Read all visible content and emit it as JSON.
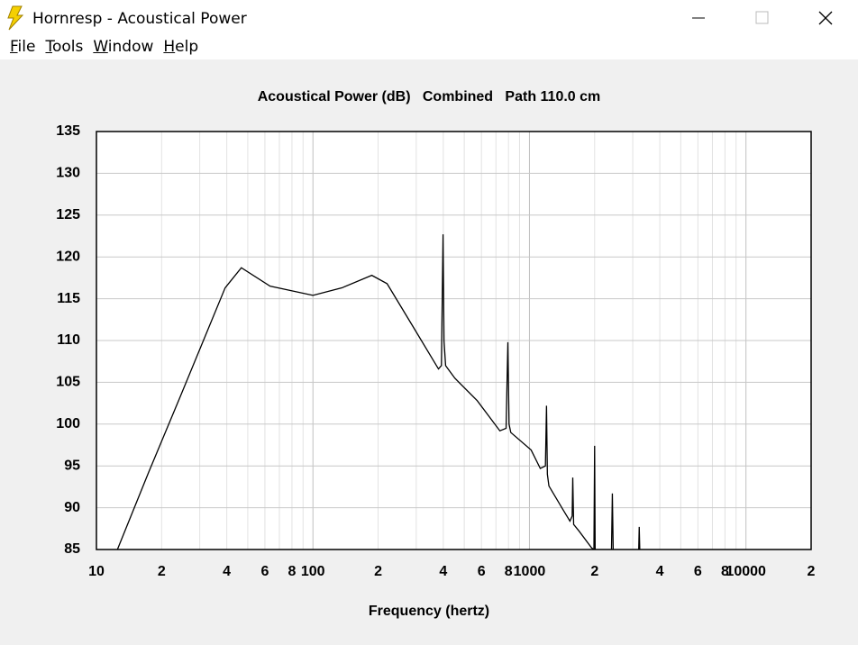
{
  "window": {
    "title": "Hornresp - Acoustical Power",
    "menu": [
      "File",
      "Tools",
      "Window",
      "Help"
    ]
  },
  "chart_data": {
    "type": "line",
    "title": "Acoustical Power (dB)   Combined   Path 110.0 cm",
    "x_label": "Frequency (hertz)",
    "x_scale": "log",
    "grid": true,
    "xlim": [
      10,
      20000
    ],
    "ylim": [
      85,
      135
    ],
    "xticks": [
      {
        "value": 10,
        "label": "10"
      },
      {
        "value": 20,
        "label": "2"
      },
      {
        "value": 40,
        "label": "4"
      },
      {
        "value": 60,
        "label": "6"
      },
      {
        "value": 80,
        "label": "8"
      },
      100,
      {
        "value": 200,
        "label": "2"
      },
      {
        "value": 400,
        "label": "4"
      },
      {
        "value": 600,
        "label": "6"
      },
      {
        "value": 800,
        "label": "8"
      },
      1000,
      {
        "value": 2000,
        "label": "2"
      },
      {
        "value": 4000,
        "label": "4"
      },
      {
        "value": 6000,
        "label": "6"
      },
      {
        "value": 8000,
        "label": "8"
      },
      10000,
      {
        "value": 20000,
        "label": "2"
      }
    ],
    "xgrid_minor": [
      30,
      50,
      70,
      90,
      300,
      500,
      700,
      900,
      3000,
      5000,
      7000,
      9000
    ],
    "yticks": [
      85,
      90,
      95,
      100,
      105,
      110,
      115,
      120,
      125,
      130,
      135
    ],
    "series": [
      {
        "name": "Combined",
        "color": "#000000",
        "x": [
          12.5,
          17.4,
          24.4,
          39.3,
          46.7,
          63.4,
          100,
          136,
          187,
          220,
          294,
          380,
          392,
          399,
          403,
          410,
          452,
          574,
          730,
          780,
          795,
          805,
          820,
          1018,
          1122,
          1185,
          1199,
          1210,
          1230,
          1426,
          1538,
          1575,
          1585,
          1600,
          1695,
          1936,
          1985,
          2000,
          2012,
          2390,
          2415,
          2440,
          3190,
          3214,
          3240
        ],
        "values": [
          85,
          94.2,
          103.3,
          116.3,
          118.7,
          116.5,
          115.4,
          116.3,
          117.8,
          116.8,
          111.4,
          106.6,
          107,
          122.7,
          110,
          107,
          105.5,
          102.8,
          99.2,
          99.5,
          109.8,
          100,
          99,
          96.9,
          94.7,
          95,
          102.2,
          94,
          92.6,
          89.8,
          88.4,
          89,
          93.6,
          88,
          87.2,
          85.2,
          85,
          97.4,
          84,
          84,
          91.7,
          84,
          84,
          87.7,
          84
        ]
      }
    ]
  }
}
